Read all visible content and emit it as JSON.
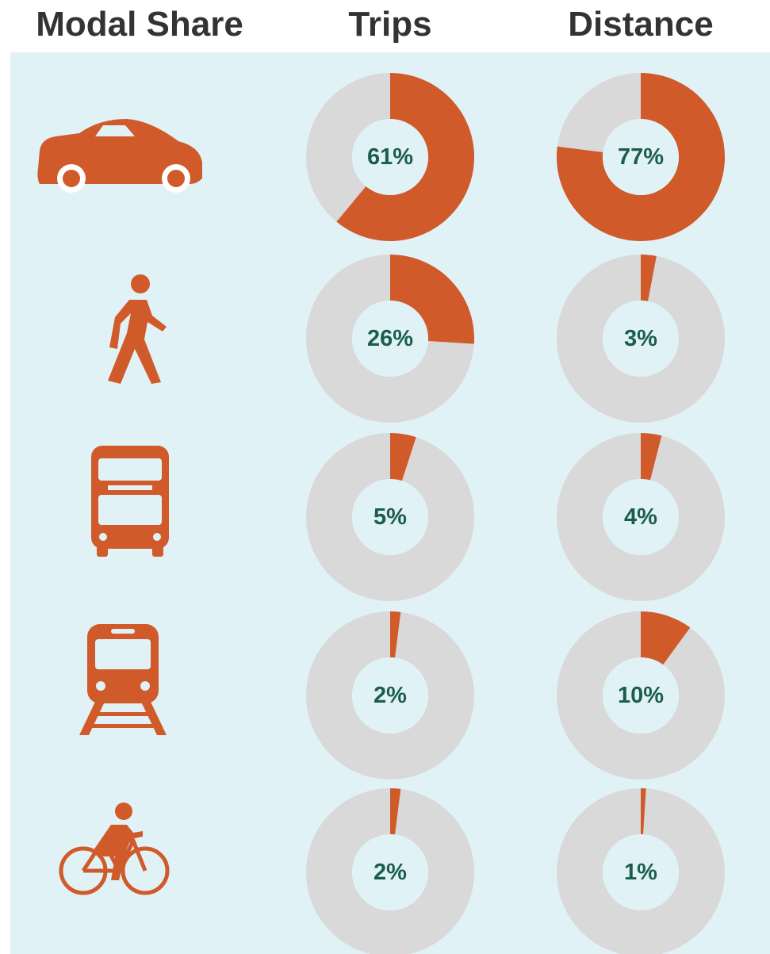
{
  "title": "Modal Share",
  "chart_data": [
    {
      "type": "donut",
      "title": "Trips",
      "values": [
        61,
        26,
        5,
        2,
        2
      ],
      "value_labels": [
        "61%",
        "26%",
        "5%",
        "2%",
        "2%"
      ],
      "total": 100,
      "color": "#d05a29",
      "track_color": "#d9d9d9"
    },
    {
      "type": "donut",
      "title": "Distance",
      "values": [
        77,
        3,
        4,
        10,
        1
      ],
      "value_labels": [
        "77%",
        "3%",
        "4%",
        "10%",
        "1%"
      ],
      "total": 100,
      "color": "#d05a29",
      "track_color": "#d9d9d9"
    }
  ]
}
